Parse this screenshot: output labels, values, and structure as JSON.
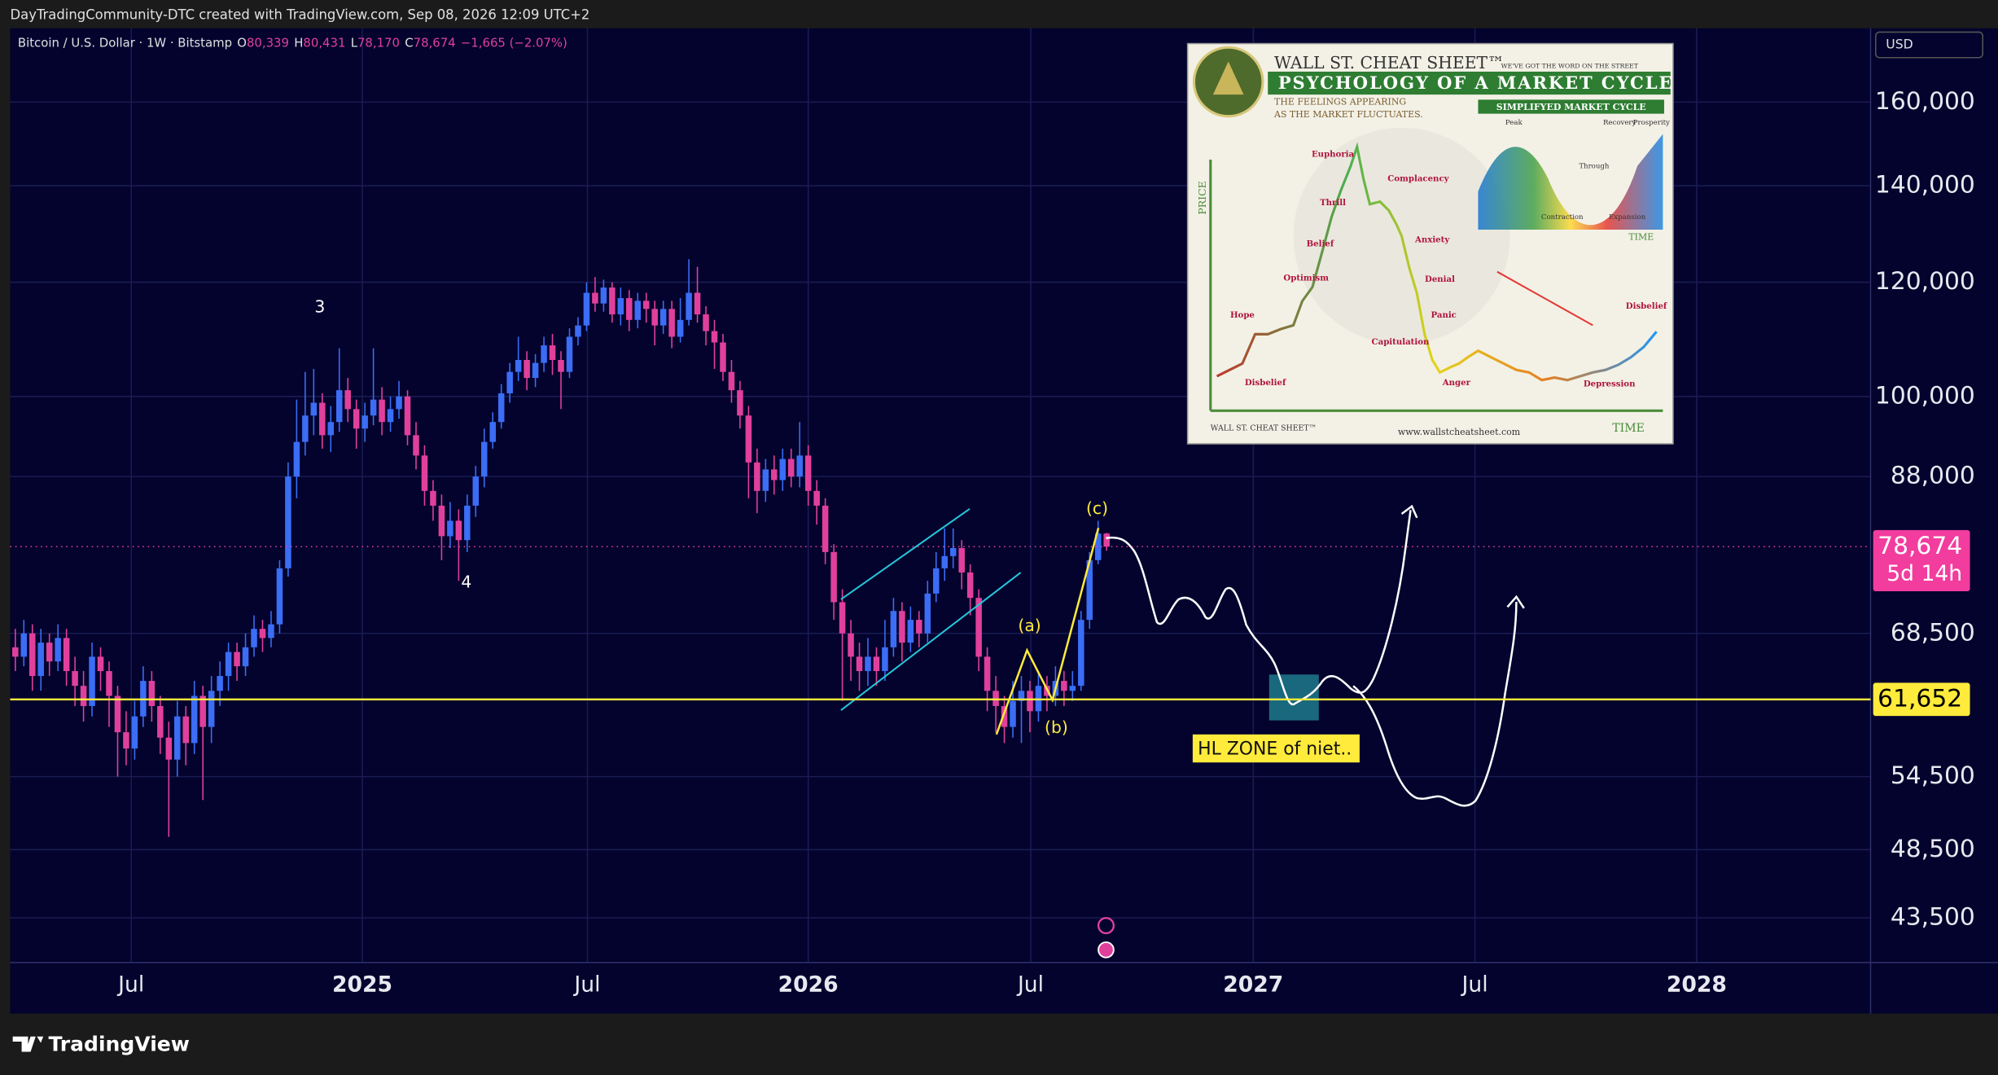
{
  "header": {
    "attribution": "DayTradingCommunity-DTC created with TradingView.com, Sep 08, 2026 12:09 UTC+2",
    "symbol": "Bitcoin / U.S. Dollar · 1W · Bitstamp",
    "ohlc": [
      {
        "key": "O",
        "value": "80,339"
      },
      {
        "key": "H",
        "value": "80,431"
      },
      {
        "key": "L",
        "value": "78,170"
      },
      {
        "key": "C",
        "value": "78,674"
      }
    ],
    "change": "−1,665 (−2.07%)",
    "currency": "USD"
  },
  "chart_data": {
    "type": "candlestick",
    "log_scale": true,
    "grid": true,
    "up_color": "#3b6df5",
    "down_color": "#e0409c",
    "ylim": [
      40500,
      180000
    ],
    "yticks": [
      {
        "value": 43500,
        "label": "43,500"
      },
      {
        "value": 48500,
        "label": "48,500"
      },
      {
        "value": 54500,
        "label": "54,500"
      },
      {
        "value": 68500,
        "label": "68,500"
      },
      {
        "value": 88000,
        "label": "88,000"
      },
      {
        "value": 100000,
        "label": "100,000"
      },
      {
        "value": 120000,
        "label": "120,000"
      },
      {
        "value": 140000,
        "label": "140,000"
      },
      {
        "value": 160000,
        "label": "160,000"
      }
    ],
    "xlim": [
      -0.6,
      217.6
    ],
    "xticks": [
      {
        "value": 13.6,
        "label": "Jul"
      },
      {
        "value": 40.7,
        "label": "2025"
      },
      {
        "value": 67.1,
        "label": "Jul"
      },
      {
        "value": 93,
        "label": "2026"
      },
      {
        "value": 119.1,
        "label": "Jul"
      },
      {
        "value": 145.2,
        "label": "2027"
      },
      {
        "value": 171.2,
        "label": "Jul"
      },
      {
        "value": 197.2,
        "label": "2028"
      }
    ],
    "candles": [
      [
        67000,
        69000,
        64500,
        66000
      ],
      [
        66000,
        70000,
        65000,
        68500
      ],
      [
        68500,
        69500,
        62500,
        64000
      ],
      [
        64000,
        69000,
        62500,
        67500
      ],
      [
        67500,
        68500,
        64000,
        65500
      ],
      [
        65500,
        69500,
        64500,
        68000
      ],
      [
        68000,
        69000,
        63000,
        64500
      ],
      [
        64500,
        66000,
        61000,
        63000
      ],
      [
        63000,
        64500,
        59500,
        61000
      ],
      [
        61000,
        67500,
        60000,
        66000
      ],
      [
        66000,
        67000,
        62500,
        64500
      ],
      [
        64500,
        65500,
        59000,
        62000
      ],
      [
        62000,
        63000,
        54500,
        58500
      ],
      [
        58500,
        60500,
        55500,
        57000
      ],
      [
        57000,
        61500,
        56000,
        60000
      ],
      [
        60000,
        65000,
        59000,
        63500
      ],
      [
        63500,
        64500,
        59500,
        61000
      ],
      [
        61000,
        62000,
        56500,
        58000
      ],
      [
        58000,
        59500,
        49500,
        56000
      ],
      [
        56000,
        61500,
        54500,
        60000
      ],
      [
        60000,
        61000,
        55500,
        57500
      ],
      [
        57500,
        63500,
        56500,
        62000
      ],
      [
        62000,
        63000,
        52500,
        59000
      ],
      [
        59000,
        64000,
        57500,
        62500
      ],
      [
        62500,
        65500,
        61000,
        64000
      ],
      [
        64000,
        67500,
        62500,
        66500
      ],
      [
        66500,
        67500,
        63500,
        65000
      ],
      [
        65000,
        68500,
        64000,
        67000
      ],
      [
        67000,
        70500,
        66000,
        69000
      ],
      [
        69000,
        70000,
        66500,
        68000
      ],
      [
        68000,
        71000,
        67000,
        69500
      ],
      [
        69500,
        77000,
        68500,
        76000
      ],
      [
        76000,
        90000,
        75000,
        88000
      ],
      [
        88000,
        99500,
        85000,
        93000
      ],
      [
        93000,
        104000,
        91000,
        97000
      ],
      [
        97000,
        104500,
        94000,
        99000
      ],
      [
        99000,
        100500,
        92000,
        94000
      ],
      [
        94000,
        98500,
        91500,
        96000
      ],
      [
        96000,
        108000,
        94500,
        101000
      ],
      [
        101000,
        103000,
        96000,
        98000
      ],
      [
        98000,
        99500,
        92000,
        95000
      ],
      [
        95000,
        99000,
        93000,
        97000
      ],
      [
        97000,
        108000,
        95500,
        99500
      ],
      [
        99500,
        101500,
        94000,
        96000
      ],
      [
        96000,
        100000,
        94500,
        98000
      ],
      [
        98000,
        102500,
        96500,
        100000
      ],
      [
        100000,
        101000,
        92500,
        94000
      ],
      [
        94000,
        96000,
        89000,
        91000
      ],
      [
        91000,
        92500,
        84000,
        86000
      ],
      [
        86000,
        87500,
        82000,
        84000
      ],
      [
        84000,
        85500,
        77000,
        80000
      ],
      [
        80000,
        84500,
        78500,
        82000
      ],
      [
        82000,
        83500,
        74500,
        79500
      ],
      [
        79500,
        85500,
        78000,
        84000
      ],
      [
        84000,
        89500,
        82500,
        88000
      ],
      [
        88000,
        95000,
        86500,
        93000
      ],
      [
        93000,
        97500,
        92000,
        96000
      ],
      [
        96000,
        102000,
        95000,
        100500
      ],
      [
        100500,
        105500,
        99000,
        104000
      ],
      [
        104000,
        110000,
        102500,
        106000
      ],
      [
        106000,
        107500,
        101000,
        103000
      ],
      [
        103000,
        107000,
        101500,
        105500
      ],
      [
        105500,
        110000,
        104000,
        108500
      ],
      [
        108500,
        110500,
        103500,
        106000
      ],
      [
        106000,
        107500,
        98000,
        104000
      ],
      [
        104000,
        111500,
        103000,
        110000
      ],
      [
        110000,
        113500,
        108500,
        112000
      ],
      [
        112000,
        120000,
        111000,
        118000
      ],
      [
        118000,
        121000,
        114500,
        116000
      ],
      [
        116000,
        120500,
        114500,
        119000
      ],
      [
        119000,
        120000,
        112500,
        114000
      ],
      [
        114000,
        119000,
        112000,
        117000
      ],
      [
        117000,
        118500,
        111000,
        113000
      ],
      [
        113000,
        118000,
        111500,
        116500
      ],
      [
        116500,
        118000,
        112500,
        115000
      ],
      [
        115000,
        116500,
        108500,
        112000
      ],
      [
        112000,
        116500,
        110500,
        115000
      ],
      [
        115000,
        116500,
        108000,
        110000
      ],
      [
        110000,
        117000,
        109000,
        113000
      ],
      [
        113000,
        124500,
        112000,
        118000
      ],
      [
        118000,
        123000,
        112500,
        114000
      ],
      [
        114000,
        115500,
        108500,
        111000
      ],
      [
        111000,
        113000,
        104500,
        109000
      ],
      [
        109000,
        110500,
        102500,
        104000
      ],
      [
        104000,
        106000,
        99000,
        101000
      ],
      [
        101000,
        102500,
        95000,
        97000
      ],
      [
        97000,
        98500,
        85000,
        90000
      ],
      [
        90000,
        92000,
        83000,
        86000
      ],
      [
        86000,
        90500,
        84500,
        89000
      ],
      [
        89000,
        91000,
        85500,
        87500
      ],
      [
        87500,
        92000,
        86000,
        90500
      ],
      [
        90500,
        92000,
        86500,
        88000
      ],
      [
        88000,
        96000,
        86500,
        91000
      ],
      [
        91000,
        92500,
        84000,
        86000
      ],
      [
        86000,
        87500,
        81500,
        84000
      ],
      [
        84000,
        85000,
        76500,
        78000
      ],
      [
        78000,
        79000,
        70000,
        72000
      ],
      [
        72000,
        73500,
        61500,
        68500
      ],
      [
        68500,
        70000,
        63500,
        66000
      ],
      [
        66000,
        67500,
        62500,
        64500
      ],
      [
        64500,
        68000,
        63000,
        66000
      ],
      [
        66000,
        67000,
        63000,
        64500
      ],
      [
        64500,
        70000,
        63500,
        67000
      ],
      [
        67000,
        72500,
        66000,
        71000
      ],
      [
        71000,
        72000,
        65500,
        67500
      ],
      [
        67500,
        71500,
        66500,
        70000
      ],
      [
        70000,
        71000,
        67000,
        68500
      ],
      [
        68500,
        74500,
        67500,
        73000
      ],
      [
        73000,
        78000,
        72000,
        76000
      ],
      [
        76000,
        81000,
        74500,
        77500
      ],
      [
        77500,
        81000,
        76000,
        78500
      ],
      [
        78500,
        79500,
        73500,
        75500
      ],
      [
        75500,
        76500,
        70500,
        72500
      ],
      [
        72500,
        73500,
        64500,
        66000
      ],
      [
        66000,
        67000,
        60500,
        62500
      ],
      [
        62500,
        64000,
        58500,
        61000
      ],
      [
        61000,
        62000,
        57500,
        59000
      ],
      [
        59000,
        63500,
        58000,
        61500
      ],
      [
        61500,
        64000,
        57500,
        62500
      ],
      [
        62500,
        63500,
        58500,
        60500
      ],
      [
        60500,
        64500,
        59500,
        63000
      ],
      [
        63000,
        64000,
        60500,
        62000
      ],
      [
        62000,
        65000,
        61000,
        63500
      ],
      [
        63500,
        64500,
        61000,
        62500
      ],
      [
        62500,
        64500,
        61500,
        63000
      ],
      [
        63000,
        71000,
        62500,
        70000
      ],
      [
        70000,
        78000,
        69000,
        77000
      ],
      [
        77000,
        82000,
        76500,
        80339
      ],
      [
        80339,
        80431,
        78170,
        78674
      ]
    ],
    "last_price": {
      "value": 78674,
      "label": "78,674",
      "countdown": "5d 14h",
      "color": "#f23c9e"
    },
    "price_line": {
      "value": 61652,
      "label": "61,652",
      "color": "#ffeb3b"
    },
    "annotations": [
      "3",
      "4",
      "(a)",
      "(b)",
      "(c)",
      "HL ZONE of niet.."
    ]
  },
  "inset": {
    "brand": "WALL ST. CHEAT SHEET™",
    "tagline": "WE'VE GOT THE WORD ON THE STREET",
    "heading": "PSYCHOLOGY OF A MARKET CYCLE",
    "subheading": [
      "THE FEELINGS APPEARING",
      "AS THE MARKET FLUCTUATES."
    ],
    "cycle_title": "SIMPLIFYED MARKET CYCLE",
    "cycle_labels": [
      "Peak",
      "Recovery",
      "Prosperity",
      "Through",
      "Contraction",
      "Expansion"
    ],
    "emotions": [
      "Euphoria",
      "Thrill",
      "Belief",
      "Optimism",
      "Hope",
      "Disbelief",
      "Complacency",
      "Anxiety",
      "Denial",
      "Panic",
      "Capitulation",
      "Anger",
      "Depression",
      "Disbelief"
    ],
    "axis_y": "PRICE",
    "axis_x": "TIME",
    "url": "www.wallstcheatsheet.com"
  },
  "footer": {
    "brand": "TradingView"
  }
}
